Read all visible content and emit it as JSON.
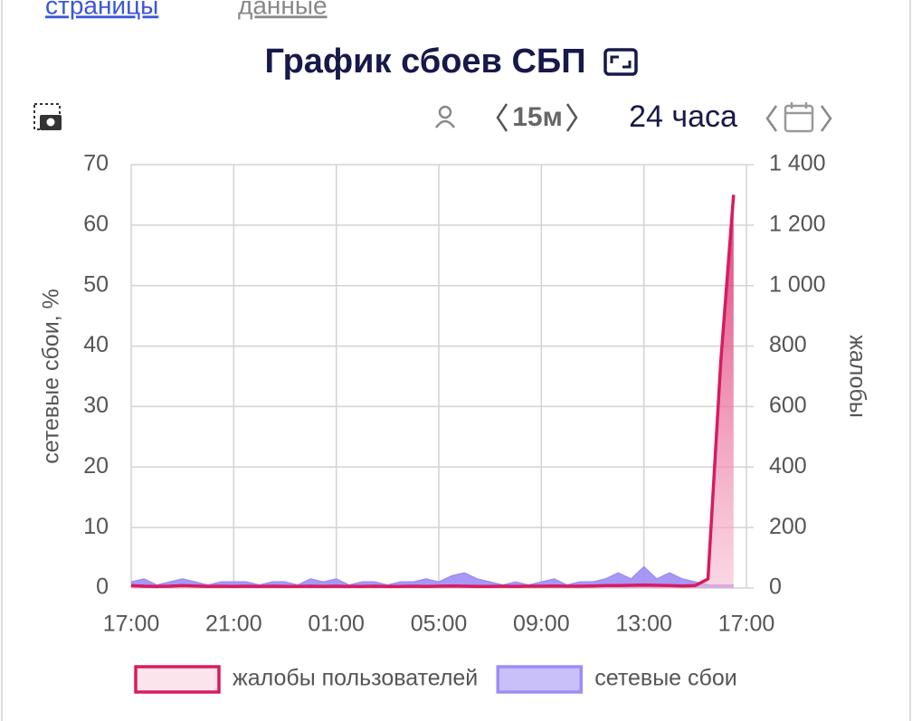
{
  "nav": {
    "links": [
      "страницы",
      "данные"
    ]
  },
  "toolbar": {
    "interval": "15м",
    "period": "24 часа"
  },
  "chart_data": {
    "type": "line",
    "title": "График сбоев СБП",
    "y_label": "сетевые сбои, %",
    "y2_label": "жалобы",
    "x": [
      "17:00",
      "17:30",
      "18:00",
      "18:30",
      "19:00",
      "19:30",
      "20:00",
      "20:30",
      "21:00",
      "21:30",
      "22:00",
      "22:30",
      "23:00",
      "23:30",
      "00:00",
      "00:30",
      "01:00",
      "01:30",
      "02:00",
      "02:30",
      "03:00",
      "03:30",
      "04:00",
      "04:30",
      "05:00",
      "05:30",
      "06:00",
      "06:30",
      "07:00",
      "07:30",
      "08:00",
      "08:30",
      "09:00",
      "09:30",
      "10:00",
      "10:30",
      "11:00",
      "11:30",
      "12:00",
      "12:30",
      "13:00",
      "13:30",
      "14:00",
      "14:30",
      "15:00",
      "15:30",
      "16:00",
      "16:30",
      "17:00"
    ],
    "xticks": [
      0,
      8,
      16,
      24,
      32,
      40,
      48
    ],
    "ylim": [
      0,
      70
    ],
    "yticks": [
      0,
      10,
      20,
      30,
      40,
      50,
      60,
      70
    ],
    "y2lim": [
      0,
      1400
    ],
    "y2ticks": [
      0,
      200,
      400,
      600,
      800,
      {
        "value": 1000,
        "label": "1 000"
      },
      {
        "value": 1200,
        "label": "1 200"
      },
      {
        "value": 1400,
        "label": "1 400"
      }
    ],
    "grid": true,
    "legend": "bottom",
    "series": [
      {
        "name": "жалобы пользователей",
        "color": "#d81b60",
        "axis": "y2",
        "values": [
          8,
          6,
          5,
          6,
          8,
          7,
          5,
          6,
          5,
          6,
          5,
          6,
          5,
          5,
          6,
          5,
          6,
          5,
          5,
          6,
          5,
          5,
          6,
          5,
          6,
          7,
          6,
          5,
          5,
          6,
          5,
          6,
          6,
          7,
          6,
          6,
          7,
          8,
          8,
          9,
          10,
          9,
          8,
          7,
          8,
          30,
          750,
          1300,
          null
        ]
      },
      {
        "name": "сетевые сбои",
        "color": "#9d8df5",
        "values": [
          1,
          1.5,
          0.5,
          1,
          1.5,
          1,
          0.5,
          1,
          1,
          1,
          0.5,
          1,
          1,
          0.5,
          1.5,
          1,
          1.5,
          0.5,
          1,
          1,
          0.5,
          1,
          1,
          1.5,
          1,
          2,
          2.5,
          1.5,
          1,
          0.5,
          1,
          0.5,
          1,
          1.5,
          0.5,
          1,
          1,
          1.5,
          2.5,
          1.5,
          3.5,
          1.5,
          2.5,
          1.5,
          1,
          0.5,
          0.5,
          0.5,
          null
        ]
      }
    ]
  }
}
